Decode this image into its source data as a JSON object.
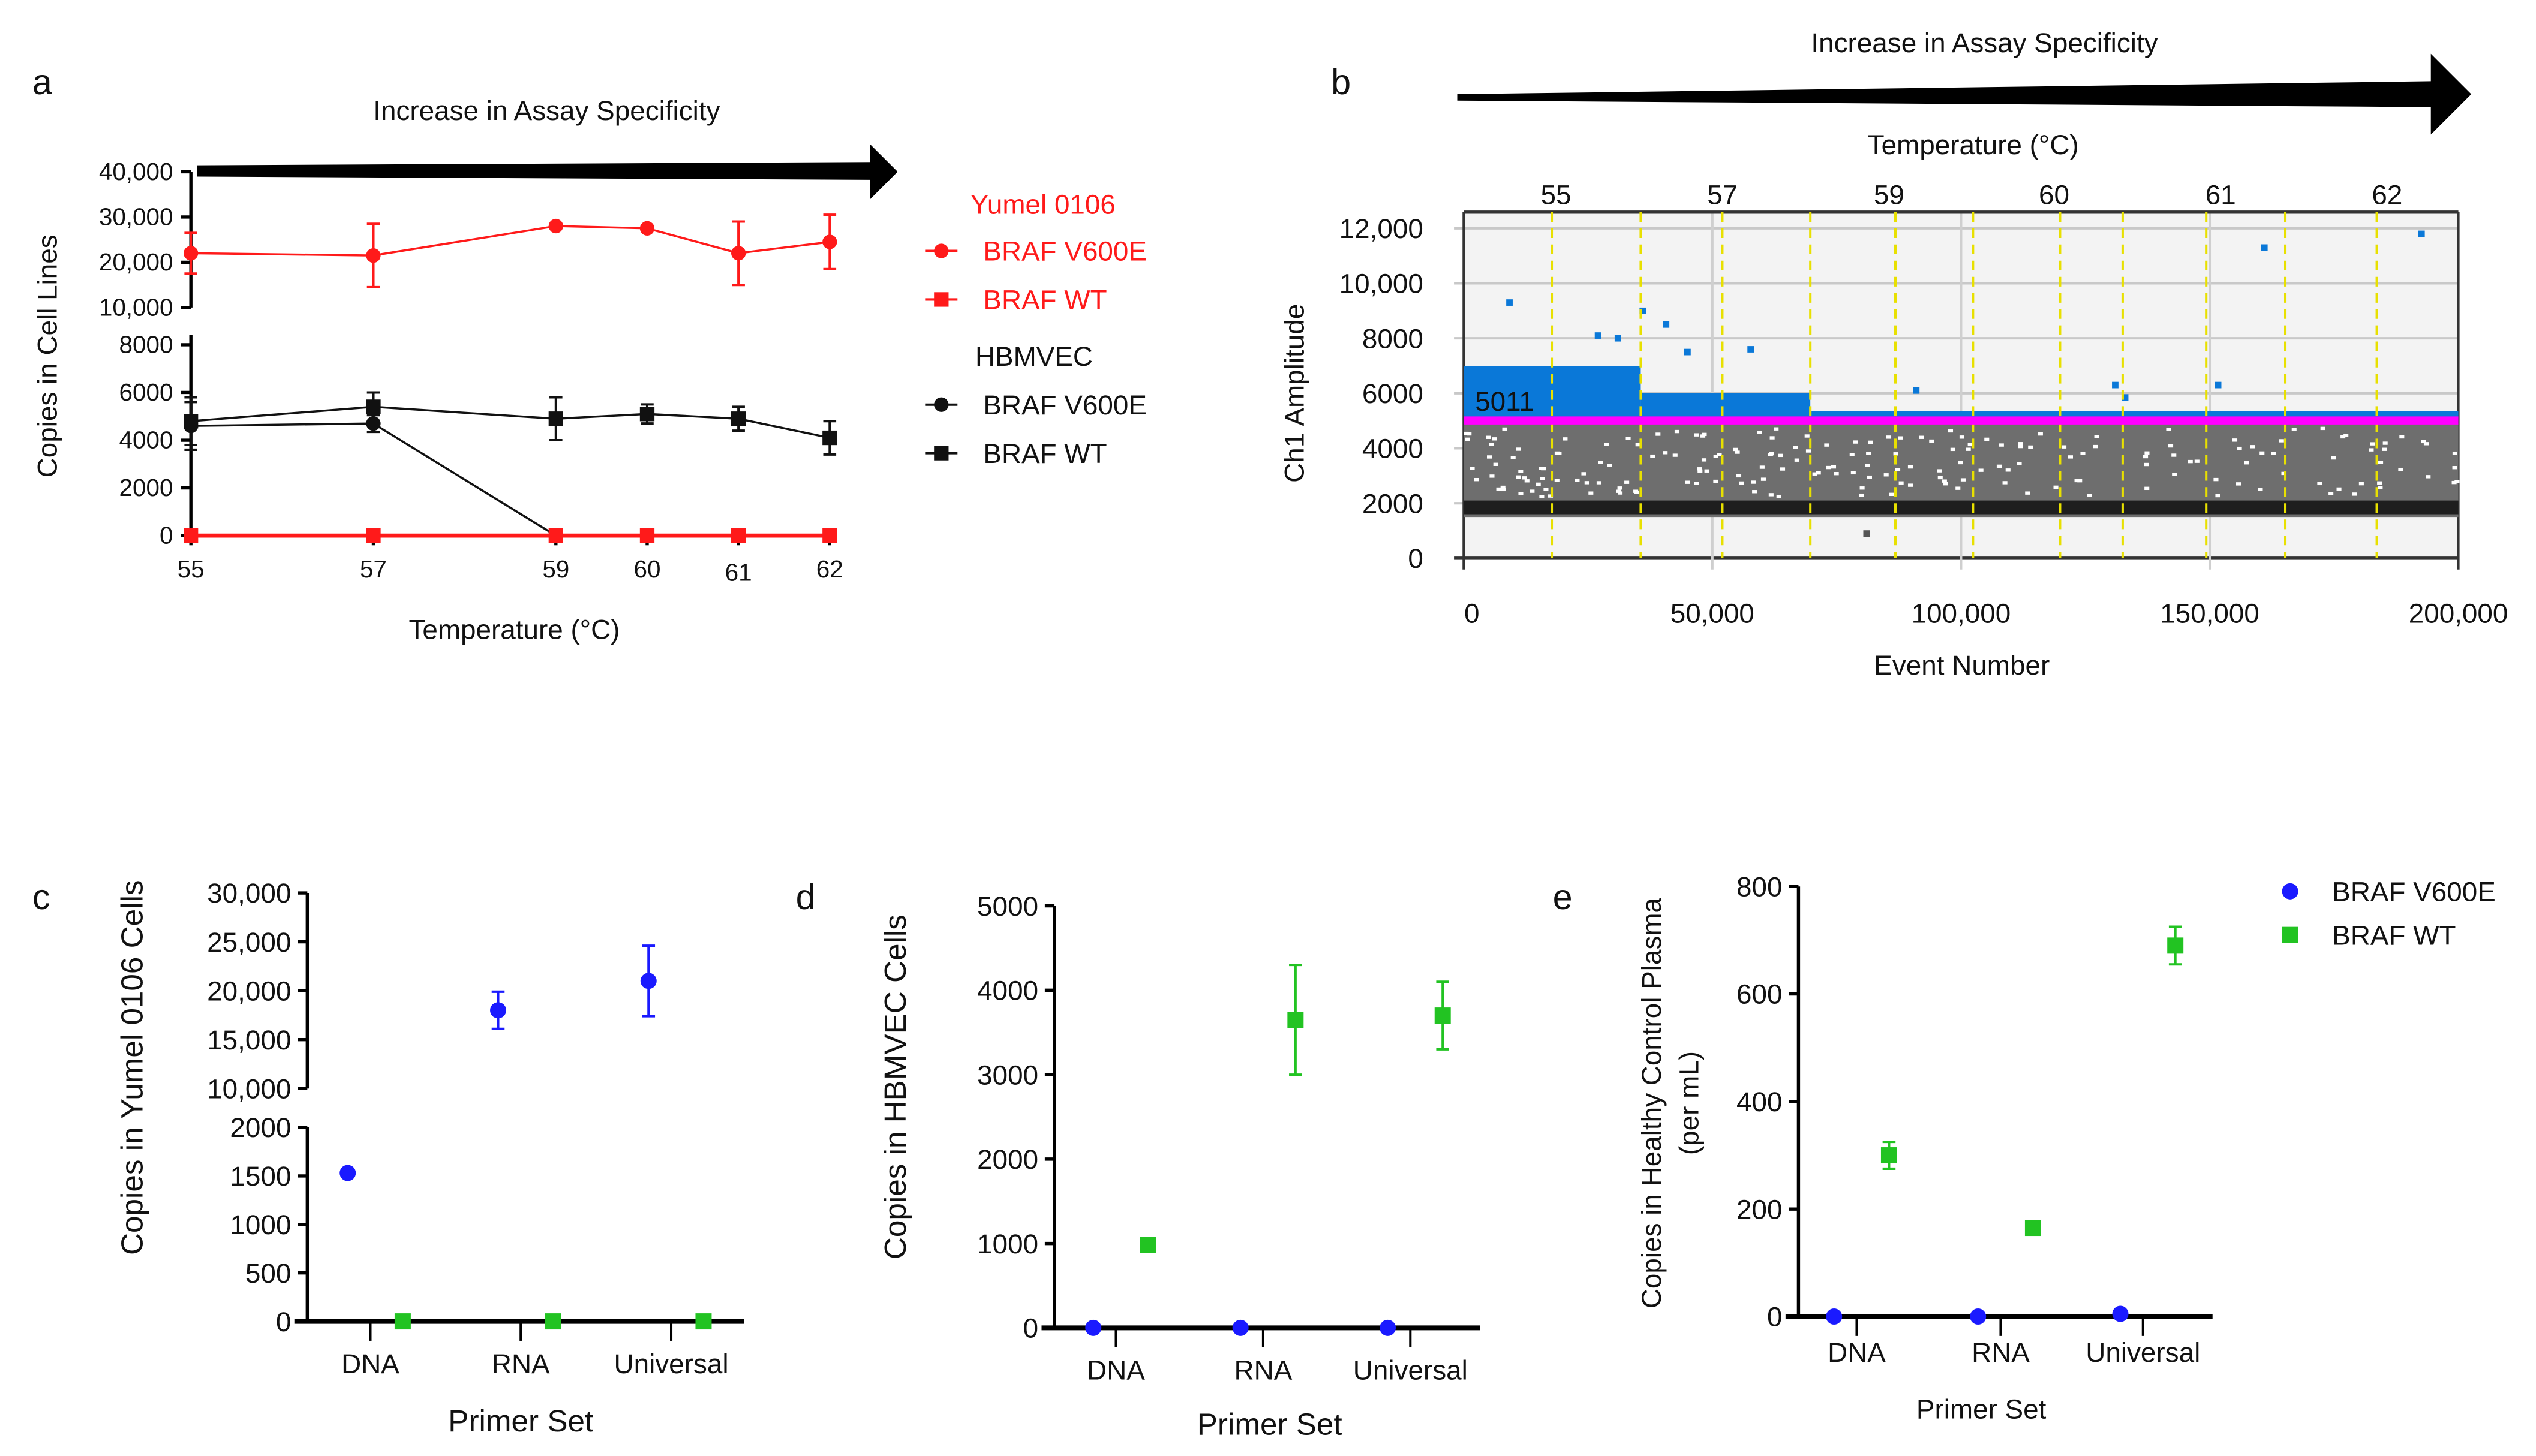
{
  "figure": {
    "panel_labels": [
      "a",
      "b",
      "c",
      "d",
      "e"
    ]
  },
  "chart_data": [
    {
      "panel": "a",
      "type": "line",
      "title": "Increase in Assay Specificity",
      "xlabel": "Temperature (°C)",
      "ylabel": "Copies in Cell Lines",
      "x": [
        55,
        57,
        59,
        60,
        61,
        62
      ],
      "xtick_labels": [
        "55",
        "57",
        "59",
        "60",
        "61",
        "62"
      ],
      "y_axis_broken": true,
      "y_segments": [
        {
          "range": [
            0,
            8000
          ],
          "ticks": [
            0,
            2000,
            4000,
            6000,
            8000
          ],
          "tick_labels": [
            "0",
            "2000",
            "4000",
            "6000",
            "8000"
          ]
        },
        {
          "range": [
            10000,
            40000
          ],
          "ticks": [
            10000,
            20000,
            30000,
            40000
          ],
          "tick_labels": [
            "10,000",
            "20,000",
            "30,000",
            "40,000"
          ]
        }
      ],
      "legend_groups": [
        {
          "name": "Yumel 0106",
          "color": "#ff1a1a"
        },
        {
          "name": "HBMVEC",
          "color": "#111111"
        }
      ],
      "series": [
        {
          "group": "Yumel 0106",
          "name": "BRAF V600E",
          "marker": "circle",
          "color": "#ff1a1a",
          "values": [
            22000,
            21500,
            28000,
            27500,
            22000,
            24500
          ],
          "errors": [
            4500,
            7000,
            0,
            0,
            7000,
            6000
          ]
        },
        {
          "group": "Yumel 0106",
          "name": "BRAF WT",
          "marker": "square",
          "color": "#ff1a1a",
          "values": [
            0,
            0,
            0,
            0,
            0,
            0
          ],
          "errors": [
            0,
            0,
            0,
            0,
            0,
            0
          ]
        },
        {
          "group": "HBMVEC",
          "name": "BRAF V600E",
          "marker": "circle",
          "color": "#111111",
          "values": [
            4600,
            4700,
            0,
            0,
            0,
            0
          ],
          "errors": [
            1000,
            350,
            0,
            0,
            0,
            0
          ]
        },
        {
          "group": "HBMVEC",
          "name": "BRAF WT",
          "marker": "square",
          "color": "#111111",
          "values": [
            4800,
            5400,
            4900,
            5100,
            4900,
            4100
          ],
          "errors": [
            1000,
            600,
            900,
            400,
            500,
            700
          ]
        }
      ],
      "legend": "right"
    },
    {
      "panel": "b",
      "type": "scatter",
      "title": "Increase in Assay Specificity",
      "top_axis_label": "Temperature (°C)",
      "top_tick_labels": [
        "55",
        "57",
        "59",
        "60",
        "61",
        "62"
      ],
      "xlabel": "Event Number",
      "ylabel": "Ch1 Amplitude",
      "xlim": [
        0,
        200000
      ],
      "ylim": [
        0,
        12000
      ],
      "xticks": [
        0,
        50000,
        100000,
        150000,
        200000
      ],
      "xtick_labels": [
        "0",
        "50,000",
        "100,000",
        "150,000",
        "200,000"
      ],
      "yticks": [
        0,
        2000,
        4000,
        6000,
        8000,
        10000,
        12000
      ],
      "ytick_labels": [
        "0",
        "2000",
        "4000",
        "6000",
        "8000",
        "10,000",
        "12,000"
      ],
      "threshold": 5011,
      "threshold_label": "5011",
      "threshold_color": "#ff00ff",
      "positive_color": "#0a78d8",
      "negative_color": "#6e6e6e",
      "well_boundaries": [
        17700,
        35600,
        52000,
        69700,
        86800,
        102400,
        119900,
        132500,
        149300,
        165200,
        183600
      ],
      "positive_clusters": [
        {
          "x": [
            0,
            35600
          ],
          "y_max": 7000
        },
        {
          "x": [
            35600,
            69700
          ],
          "y_max": 6000
        },
        {
          "x": [
            69700,
            200000
          ],
          "y_max": 5350
        }
      ],
      "negative_band": {
        "y": [
          1500,
          4900
        ],
        "dense_y": [
          1600,
          2100
        ]
      },
      "outliers": [
        [
          9200,
          9300
        ],
        [
          27000,
          8100
        ],
        [
          31000,
          8000
        ],
        [
          36000,
          9000
        ],
        [
          40700,
          8500
        ],
        [
          45000,
          7500
        ],
        [
          57700,
          7600
        ],
        [
          91000,
          6100
        ],
        [
          131000,
          6300
        ],
        [
          133000,
          5850
        ],
        [
          151700,
          6300
        ],
        [
          161000,
          11300
        ],
        [
          192600,
          11800
        ],
        [
          81000,
          900
        ]
      ]
    },
    {
      "panel": "c",
      "type": "scatter",
      "xlabel": "Primer Set",
      "ylabel": "Copies in Yumel 0106 Cells",
      "categories": [
        "DNA",
        "RNA",
        "Universal"
      ],
      "y_axis_broken": true,
      "y_segments": [
        {
          "range": [
            0,
            2000
          ],
          "ticks": [
            0,
            500,
            1000,
            1500,
            2000
          ],
          "tick_labels": [
            "0",
            "500",
            "1000",
            "1500",
            "2000"
          ]
        },
        {
          "range": [
            10000,
            30000
          ],
          "ticks": [
            10000,
            15000,
            20000,
            25000,
            30000
          ],
          "tick_labels": [
            "10,000",
            "15,000",
            "20,000",
            "25,000",
            "30,000"
          ]
        }
      ],
      "series": [
        {
          "name": "BRAF V600E",
          "marker": "circle",
          "color": "#1a1aff",
          "values": [
            1530,
            18000,
            21000
          ],
          "errors": [
            0,
            1900,
            3600
          ]
        },
        {
          "name": "BRAF WT",
          "marker": "square",
          "color": "#22c322",
          "values": [
            0,
            0,
            0
          ],
          "errors": [
            0,
            0,
            0
          ]
        }
      ]
    },
    {
      "panel": "d",
      "type": "scatter",
      "xlabel": "Primer Set",
      "ylabel": "Copies in HBMVEC Cells",
      "categories": [
        "DNA",
        "RNA",
        "Universal"
      ],
      "ylim": [
        0,
        5000
      ],
      "yticks": [
        0,
        1000,
        2000,
        3000,
        4000,
        5000
      ],
      "ytick_labels": [
        "0",
        "1000",
        "2000",
        "3000",
        "4000",
        "5000"
      ],
      "series": [
        {
          "name": "BRAF V600E",
          "marker": "circle",
          "color": "#1a1aff",
          "values": [
            0,
            0,
            0
          ],
          "errors": [
            0,
            0,
            0
          ]
        },
        {
          "name": "BRAF WT",
          "marker": "square",
          "color": "#22c322",
          "values": [
            980,
            3650,
            3700
          ],
          "errors": [
            0,
            650,
            400
          ]
        }
      ]
    },
    {
      "panel": "e",
      "type": "scatter",
      "xlabel": "Primer Set",
      "ylabel": "Copies in Healthy Control Plasma",
      "ylabel2": "(per mL)",
      "categories": [
        "DNA",
        "RNA",
        "Universal"
      ],
      "ylim": [
        0,
        800
      ],
      "yticks": [
        0,
        200,
        400,
        600,
        800
      ],
      "ytick_labels": [
        "0",
        "200",
        "400",
        "600",
        "800"
      ],
      "series": [
        {
          "name": "BRAF V600E",
          "marker": "circle",
          "color": "#1a1aff",
          "values": [
            0,
            0,
            5
          ],
          "errors": [
            0,
            0,
            0
          ]
        },
        {
          "name": "BRAF WT",
          "marker": "square",
          "color": "#22c322",
          "values": [
            300,
            165,
            690
          ],
          "errors": [
            25,
            0,
            35
          ]
        }
      ],
      "legend": "top-right"
    }
  ]
}
